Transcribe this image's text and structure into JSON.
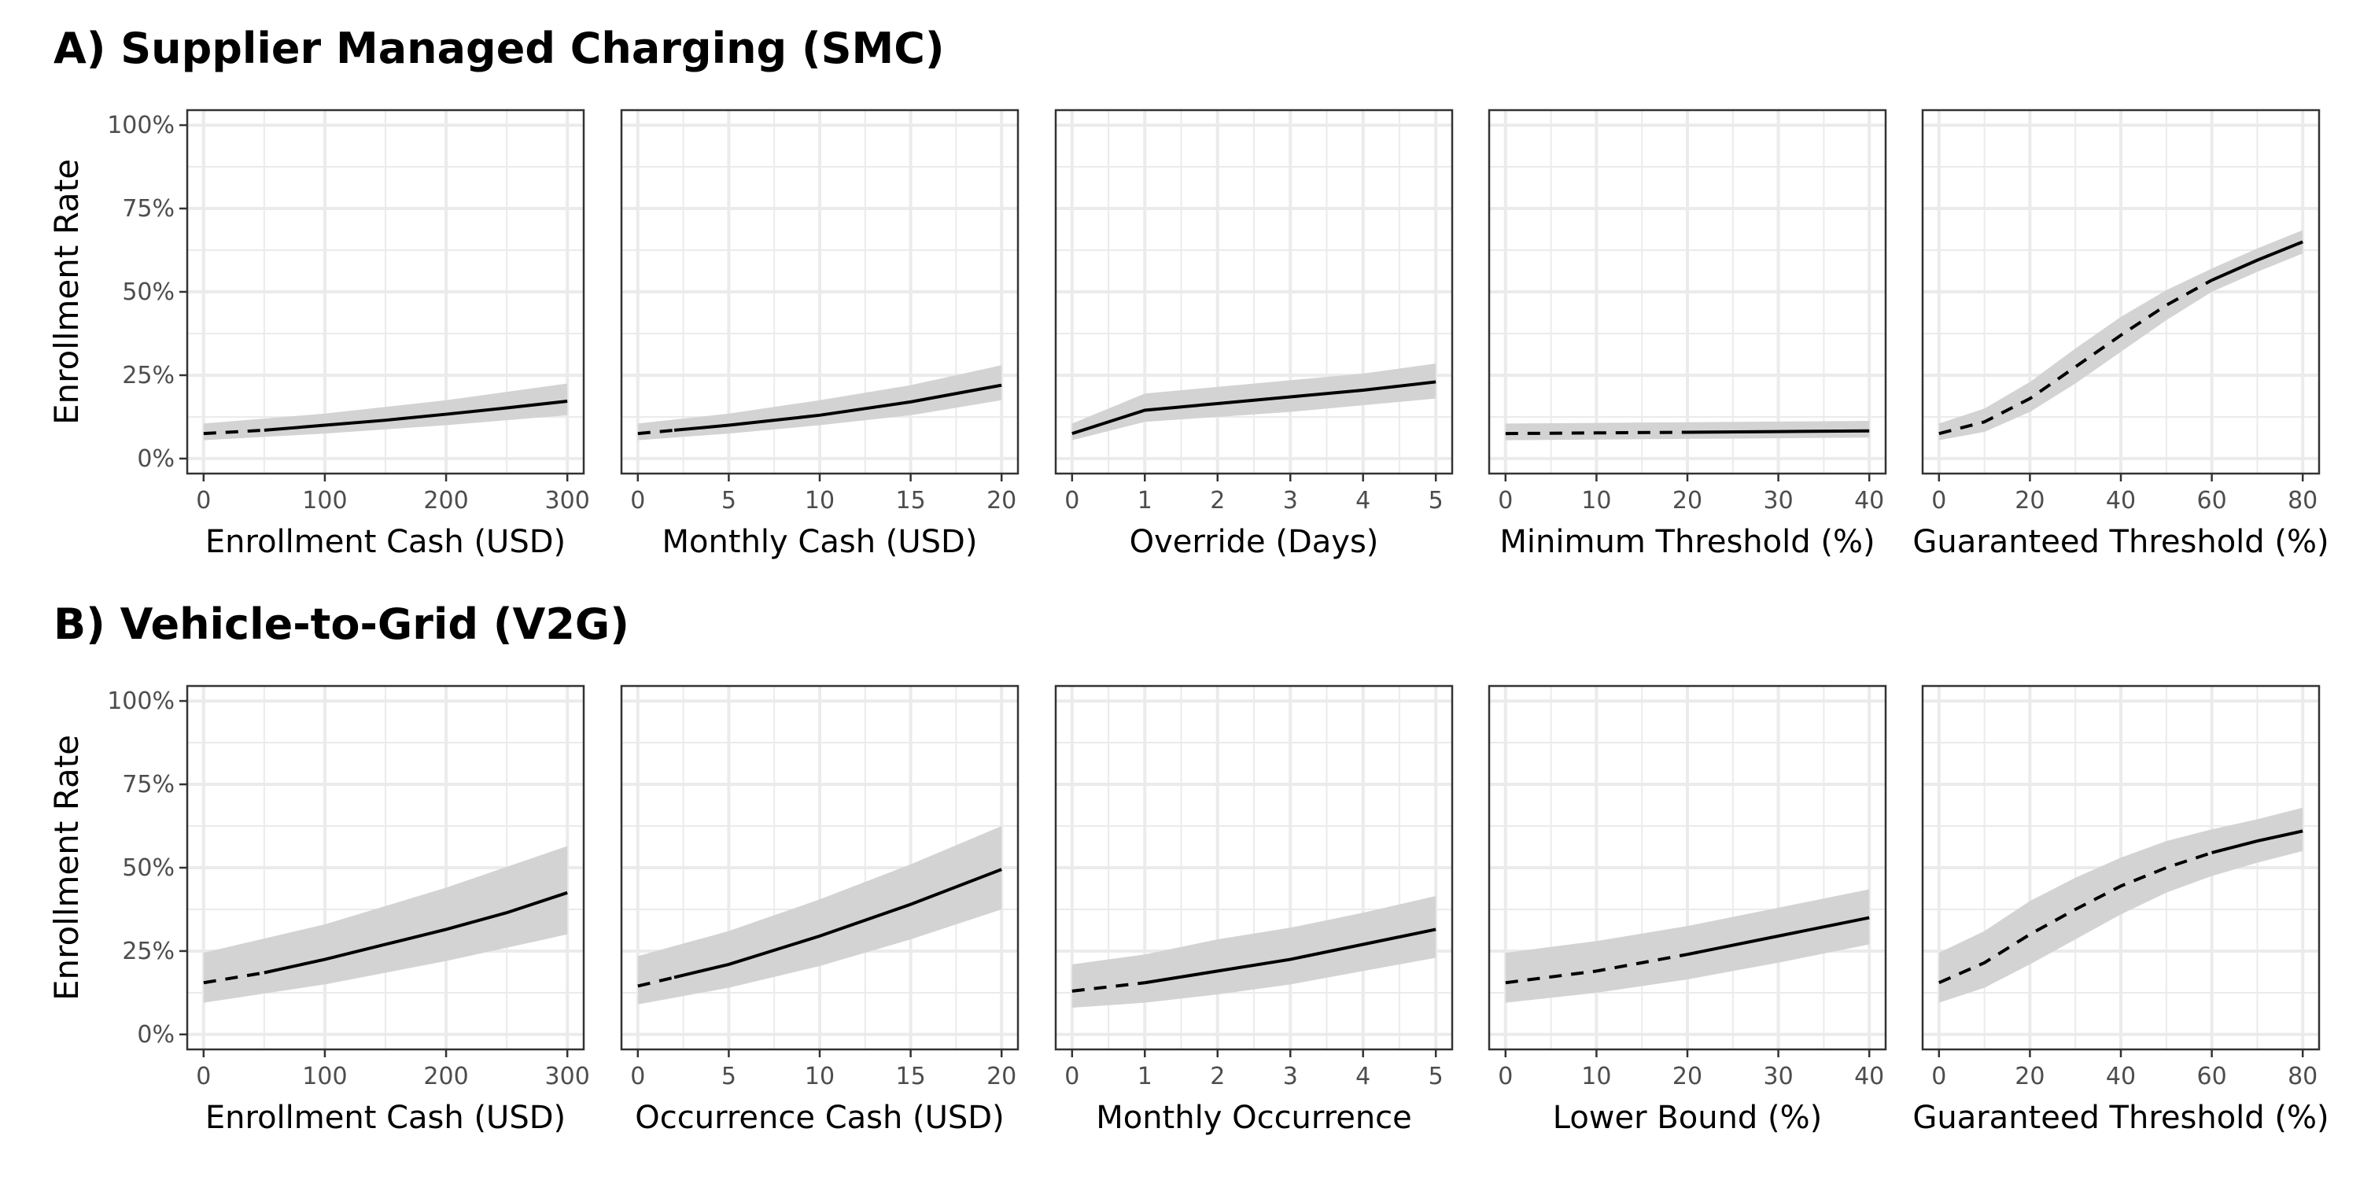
{
  "figure": {
    "y_axis_label": "Enrollment Rate",
    "y_ticks": [
      0,
      25,
      50,
      75,
      100
    ],
    "y_tick_suffix": "%",
    "ylim": [
      0,
      100
    ],
    "colors": {
      "line": "#000000",
      "band": "#d3d3d3",
      "grid": "#ebebeb",
      "panel_border": "#333333"
    }
  },
  "chart_data": [
    {
      "type": "line",
      "title": "A) Supplier Managed Charging (SMC)",
      "ylabel": "Enrollment Rate",
      "panels": [
        {
          "xlabel": "Enrollment Cash (USD)",
          "x_ticks": [
            0,
            100,
            200,
            300
          ],
          "xlim": [
            0,
            300
          ],
          "line": [
            [
              0,
              7.5
            ],
            [
              50,
              8.5
            ],
            [
              100,
              10
            ],
            [
              150,
              11.5
            ],
            [
              200,
              13.3
            ],
            [
              250,
              15.2
            ],
            [
              300,
              17.2
            ]
          ],
          "upper": [
            [
              0,
              10.5
            ],
            [
              100,
              13.5
            ],
            [
              200,
              17.5
            ],
            [
              300,
              22.5
            ]
          ],
          "lower": [
            [
              0,
              5.5
            ],
            [
              100,
              7.5
            ],
            [
              200,
              10
            ],
            [
              300,
              13
            ]
          ],
          "dashed_until": 50
        },
        {
          "xlabel": "Monthly Cash (USD)",
          "x_ticks": [
            0,
            5,
            10,
            15,
            20
          ],
          "xlim": [
            0,
            20
          ],
          "line": [
            [
              0,
              7.5
            ],
            [
              5,
              10
            ],
            [
              10,
              13
            ],
            [
              15,
              17
            ],
            [
              20,
              22
            ]
          ],
          "upper": [
            [
              0,
              10.5
            ],
            [
              5,
              13.5
            ],
            [
              10,
              17.5
            ],
            [
              15,
              22
            ],
            [
              20,
              28
            ]
          ],
          "lower": [
            [
              0,
              5.5
            ],
            [
              5,
              7.5
            ],
            [
              10,
              10
            ],
            [
              15,
              13
            ],
            [
              20,
              17.5
            ]
          ],
          "dashed_until": 2
        },
        {
          "xlabel": "Override (Days)",
          "x_ticks": [
            0,
            1,
            2,
            3,
            4,
            5
          ],
          "xlim": [
            0,
            5
          ],
          "line": [
            [
              0,
              7.5
            ],
            [
              1,
              14.5
            ],
            [
              2,
              16.5
            ],
            [
              3,
              18.5
            ],
            [
              4,
              20.5
            ],
            [
              5,
              23
            ]
          ],
          "upper": [
            [
              0,
              10.5
            ],
            [
              1,
              19.5
            ],
            [
              2,
              21.5
            ],
            [
              3,
              23.5
            ],
            [
              4,
              25.5
            ],
            [
              5,
              28.5
            ]
          ],
          "lower": [
            [
              0,
              5.5
            ],
            [
              1,
              11
            ],
            [
              2,
              12.5
            ],
            [
              3,
              14
            ],
            [
              4,
              16
            ],
            [
              5,
              18
            ]
          ],
          "dashed_until": 0
        },
        {
          "xlabel": "Minimum Threshold (%)",
          "x_ticks": [
            0,
            10,
            20,
            30,
            40
          ],
          "xlim": [
            0,
            40
          ],
          "line": [
            [
              0,
              7.5
            ],
            [
              10,
              7.7
            ],
            [
              20,
              7.9
            ],
            [
              30,
              8.1
            ],
            [
              40,
              8.3
            ]
          ],
          "upper": [
            [
              0,
              10.5
            ],
            [
              10,
              10.7
            ],
            [
              20,
              10.9
            ],
            [
              30,
              11.1
            ],
            [
              40,
              11.3
            ]
          ],
          "lower": [
            [
              0,
              5.5
            ],
            [
              10,
              5.7
            ],
            [
              20,
              5.9
            ],
            [
              30,
              6.1
            ],
            [
              40,
              6.3
            ]
          ],
          "dashed_until": 20
        },
        {
          "xlabel": "Guaranteed Threshold (%)",
          "x_ticks": [
            0,
            20,
            40,
            60,
            80
          ],
          "xlim": [
            0,
            80
          ],
          "line": [
            [
              0,
              7.5
            ],
            [
              10,
              11
            ],
            [
              20,
              18
            ],
            [
              30,
              27.5
            ],
            [
              40,
              37
            ],
            [
              50,
              46
            ],
            [
              60,
              53.5
            ],
            [
              70,
              59.5
            ],
            [
              80,
              65
            ]
          ],
          "upper": [
            [
              0,
              10.5
            ],
            [
              10,
              15
            ],
            [
              20,
              23
            ],
            [
              30,
              33
            ],
            [
              40,
              42.5
            ],
            [
              50,
              50.5
            ],
            [
              60,
              57
            ],
            [
              70,
              63
            ],
            [
              80,
              68.5
            ]
          ],
          "lower": [
            [
              0,
              5.5
            ],
            [
              10,
              8
            ],
            [
              20,
              14
            ],
            [
              30,
              22.5
            ],
            [
              40,
              32
            ],
            [
              50,
              41.5
            ],
            [
              60,
              50
            ],
            [
              70,
              56
            ],
            [
              80,
              61.5
            ]
          ],
          "dashed_until": 60
        }
      ]
    },
    {
      "type": "line",
      "title": "B) Vehicle-to-Grid (V2G)",
      "ylabel": "Enrollment Rate",
      "panels": [
        {
          "xlabel": "Enrollment Cash (USD)",
          "x_ticks": [
            0,
            100,
            200,
            300
          ],
          "xlim": [
            0,
            300
          ],
          "line": [
            [
              0,
              15.5
            ],
            [
              50,
              18.5
            ],
            [
              100,
              22.5
            ],
            [
              150,
              27
            ],
            [
              200,
              31.5
            ],
            [
              250,
              36.5
            ],
            [
              300,
              42.5
            ]
          ],
          "upper": [
            [
              0,
              24.5
            ],
            [
              100,
              33
            ],
            [
              200,
              44
            ],
            [
              300,
              56.5
            ]
          ],
          "lower": [
            [
              0,
              9.5
            ],
            [
              100,
              15
            ],
            [
              200,
              22
            ],
            [
              300,
              30
            ]
          ],
          "dashed_until": 50
        },
        {
          "xlabel": "Occurrence Cash (USD)",
          "x_ticks": [
            0,
            5,
            10,
            15,
            20
          ],
          "xlim": [
            0,
            20
          ],
          "line": [
            [
              0,
              14.5
            ],
            [
              5,
              21
            ],
            [
              10,
              29.5
            ],
            [
              15,
              39
            ],
            [
              20,
              49.5
            ]
          ],
          "upper": [
            [
              0,
              23.5
            ],
            [
              5,
              31
            ],
            [
              10,
              40.5
            ],
            [
              15,
              51
            ],
            [
              20,
              62.5
            ]
          ],
          "lower": [
            [
              0,
              9
            ],
            [
              5,
              14
            ],
            [
              10,
              20.5
            ],
            [
              15,
              28.5
            ],
            [
              20,
              37.5
            ]
          ],
          "dashed_until": 2
        },
        {
          "xlabel": "Monthly Occurrence",
          "x_ticks": [
            0,
            1,
            2,
            3,
            4,
            5
          ],
          "xlim": [
            0,
            5
          ],
          "line": [
            [
              0,
              13
            ],
            [
              1,
              15.5
            ],
            [
              2,
              19
            ],
            [
              3,
              22.5
            ],
            [
              4,
              27
            ],
            [
              5,
              31.5
            ]
          ],
          "upper": [
            [
              0,
              21
            ],
            [
              1,
              24
            ],
            [
              2,
              28.5
            ],
            [
              3,
              32
            ],
            [
              4,
              36.5
            ],
            [
              5,
              41.5
            ]
          ],
          "lower": [
            [
              0,
              8
            ],
            [
              1,
              9.5
            ],
            [
              2,
              12
            ],
            [
              3,
              15
            ],
            [
              4,
              19
            ],
            [
              5,
              23
            ]
          ],
          "dashed_until": 1
        },
        {
          "xlabel": "Lower Bound (%)",
          "x_ticks": [
            0,
            10,
            20,
            30,
            40
          ],
          "xlim": [
            0,
            40
          ],
          "line": [
            [
              0,
              15.5
            ],
            [
              10,
              19
            ],
            [
              20,
              24
            ],
            [
              30,
              29.5
            ],
            [
              40,
              35
            ]
          ],
          "upper": [
            [
              0,
              24.5
            ],
            [
              10,
              28
            ],
            [
              20,
              32.5
            ],
            [
              30,
              38
            ],
            [
              40,
              43.5
            ]
          ],
          "lower": [
            [
              0,
              9.5
            ],
            [
              10,
              12.5
            ],
            [
              20,
              16.5
            ],
            [
              30,
              21.5
            ],
            [
              40,
              27
            ]
          ],
          "dashed_until": 20
        },
        {
          "xlabel": "Guaranteed Threshold (%)",
          "x_ticks": [
            0,
            20,
            40,
            60,
            80
          ],
          "xlim": [
            0,
            80
          ],
          "line": [
            [
              0,
              15.5
            ],
            [
              10,
              21.5
            ],
            [
              20,
              30
            ],
            [
              30,
              37.5
            ],
            [
              40,
              44.5
            ],
            [
              50,
              50
            ],
            [
              60,
              54.5
            ],
            [
              70,
              58
            ],
            [
              80,
              61
            ]
          ],
          "upper": [
            [
              0,
              24.5
            ],
            [
              10,
              31
            ],
            [
              20,
              40
            ],
            [
              30,
              47
            ],
            [
              40,
              53
            ],
            [
              50,
              58
            ],
            [
              60,
              61.5
            ],
            [
              70,
              64.5
            ],
            [
              80,
              68
            ]
          ],
          "lower": [
            [
              0,
              9.5
            ],
            [
              10,
              14
            ],
            [
              20,
              21
            ],
            [
              30,
              28.5
            ],
            [
              40,
              36
            ],
            [
              50,
              42.5
            ],
            [
              60,
              47.5
            ],
            [
              70,
              51.5
            ],
            [
              80,
              55
            ]
          ],
          "dashed_until": 60
        }
      ]
    }
  ]
}
